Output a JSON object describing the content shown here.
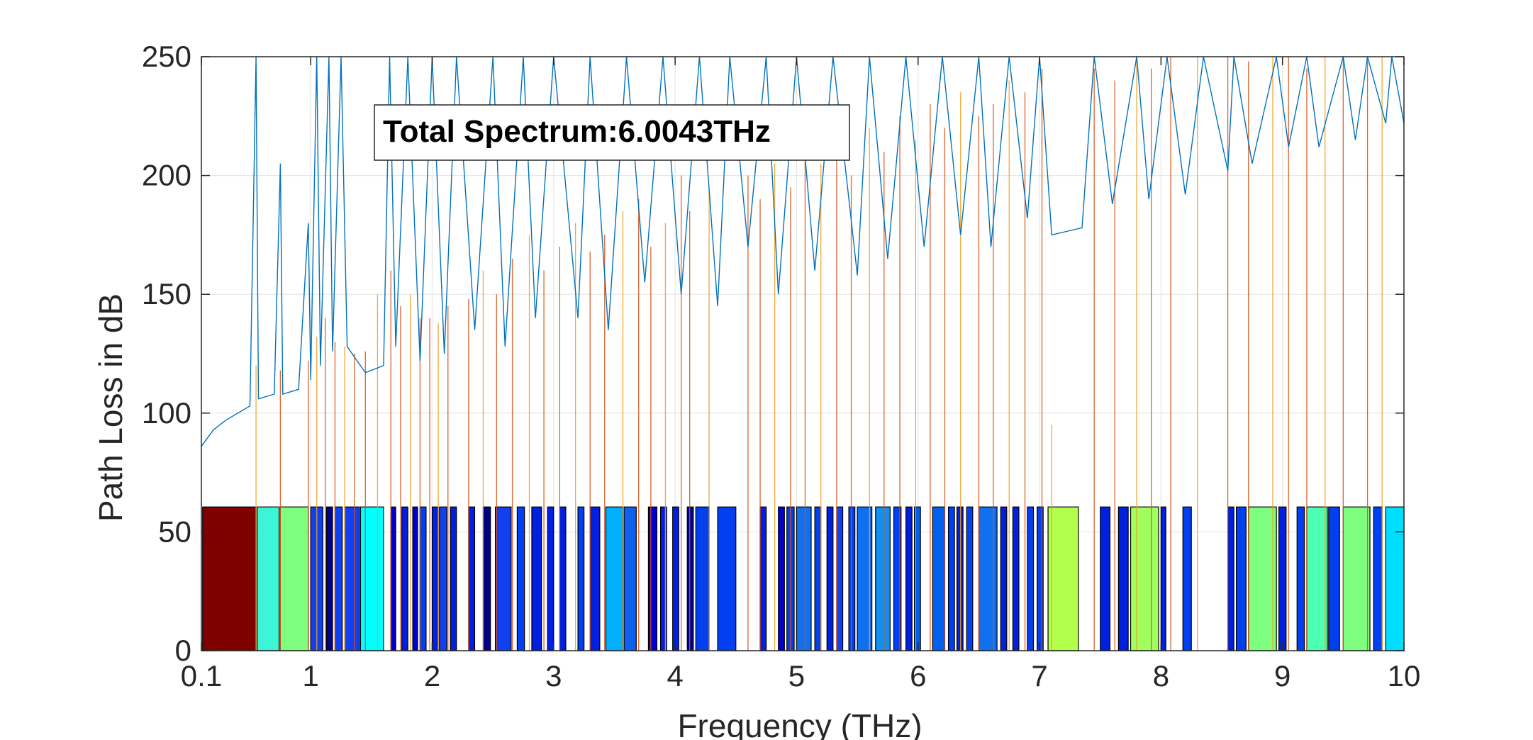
{
  "chart_data": {
    "type": "bar",
    "xlabel": "Frequency (THz)",
    "ylabel": "Path Loss in dB",
    "xlim": [
      0.1,
      10
    ],
    "ylim": [
      0,
      250
    ],
    "xticks": [
      0.1,
      1,
      2,
      3,
      4,
      5,
      6,
      7,
      8,
      9,
      10
    ],
    "xtick_labels": [
      "0.1",
      "1",
      "2",
      "3",
      "4",
      "5",
      "6",
      "7",
      "8",
      "9",
      "10"
    ],
    "yticks": [
      0,
      50,
      100,
      150,
      200,
      250
    ],
    "ytick_labels": [
      "0",
      "50",
      "100",
      "150",
      "200",
      "250"
    ],
    "grid": true,
    "annotation": "Total Spectrum:6.0043THz",
    "series": [
      {
        "type": "line",
        "color": "#0072BD",
        "points": [
          [
            0.1,
            86
          ],
          [
            0.2,
            93
          ],
          [
            0.3,
            97
          ],
          [
            0.4,
            100
          ],
          [
            0.5,
            103
          ],
          [
            0.55,
            250
          ],
          [
            0.57,
            106
          ],
          [
            0.7,
            108
          ],
          [
            0.75,
            205
          ],
          [
            0.77,
            108
          ],
          [
            0.9,
            110
          ],
          [
            0.98,
            180
          ],
          [
            1.0,
            114
          ],
          [
            1.05,
            250
          ],
          [
            1.08,
            120
          ],
          [
            1.15,
            250
          ],
          [
            1.18,
            126
          ],
          [
            1.25,
            250
          ],
          [
            1.3,
            128
          ],
          [
            1.45,
            117
          ],
          [
            1.6,
            120
          ],
          [
            1.65,
            250
          ],
          [
            1.7,
            128
          ],
          [
            1.8,
            250
          ],
          [
            1.9,
            122
          ],
          [
            2.0,
            250
          ],
          [
            2.1,
            125
          ],
          [
            2.2,
            250
          ],
          [
            2.35,
            135
          ],
          [
            2.5,
            250
          ],
          [
            2.6,
            128
          ],
          [
            2.75,
            250
          ],
          [
            2.85,
            140
          ],
          [
            3.0,
            250
          ],
          [
            3.2,
            140
          ],
          [
            3.3,
            250
          ],
          [
            3.45,
            135
          ],
          [
            3.6,
            250
          ],
          [
            3.75,
            155
          ],
          [
            3.9,
            250
          ],
          [
            4.05,
            150
          ],
          [
            4.2,
            250
          ],
          [
            4.35,
            145
          ],
          [
            4.45,
            250
          ],
          [
            4.6,
            170
          ],
          [
            4.75,
            250
          ],
          [
            4.85,
            150
          ],
          [
            5.0,
            250
          ],
          [
            5.15,
            160
          ],
          [
            5.3,
            250
          ],
          [
            5.5,
            158
          ],
          [
            5.6,
            250
          ],
          [
            5.75,
            165
          ],
          [
            5.9,
            250
          ],
          [
            6.05,
            170
          ],
          [
            6.2,
            250
          ],
          [
            6.35,
            175
          ],
          [
            6.5,
            250
          ],
          [
            6.6,
            170
          ],
          [
            6.75,
            250
          ],
          [
            6.9,
            182
          ],
          [
            7.0,
            250
          ],
          [
            7.1,
            175
          ],
          [
            7.35,
            178
          ],
          [
            7.45,
            250
          ],
          [
            7.6,
            188
          ],
          [
            7.8,
            250
          ],
          [
            7.9,
            190
          ],
          [
            8.05,
            250
          ],
          [
            8.2,
            192
          ],
          [
            8.35,
            250
          ],
          [
            8.55,
            202
          ],
          [
            8.6,
            250
          ],
          [
            8.75,
            205
          ],
          [
            8.95,
            250
          ],
          [
            9.05,
            212
          ],
          [
            9.2,
            250
          ],
          [
            9.3,
            212
          ],
          [
            9.5,
            250
          ],
          [
            9.6,
            215
          ],
          [
            9.7,
            250
          ],
          [
            9.85,
            222
          ],
          [
            9.9,
            250
          ],
          [
            10.0,
            222
          ]
        ]
      },
      {
        "type": "spikes",
        "color": "#D95319",
        "x": [
          0.55,
          0.75,
          0.98,
          1.05,
          1.12,
          1.2,
          1.28,
          1.36,
          1.45,
          1.55,
          1.66,
          1.74,
          1.82,
          1.9,
          1.98,
          2.05,
          2.13,
          2.3,
          2.42,
          2.53,
          2.66,
          2.8,
          2.92,
          3.05,
          3.18,
          3.3,
          3.42,
          3.57,
          3.7,
          3.8,
          3.92,
          4.05,
          4.12,
          4.28,
          4.6,
          4.7,
          4.82,
          4.95,
          5.07,
          5.2,
          5.33,
          5.45,
          5.6,
          5.72,
          5.85,
          5.98,
          6.1,
          6.22,
          6.35,
          6.5,
          6.62,
          6.75,
          6.88,
          7.02,
          7.1,
          7.45,
          7.62,
          7.8,
          7.92,
          8.08,
          8.3,
          8.55,
          8.72,
          8.92,
          9.05,
          9.2,
          9.35,
          9.5,
          9.7,
          9.82
        ],
        "heights": [
          120,
          118,
          122,
          132,
          140,
          130,
          128,
          125,
          126,
          150,
          160,
          145,
          150,
          140,
          140,
          138,
          145,
          148,
          160,
          150,
          165,
          175,
          160,
          170,
          180,
          168,
          175,
          185,
          190,
          170,
          180,
          200,
          185,
          195,
          200,
          190,
          205,
          195,
          210,
          205,
          215,
          200,
          220,
          210,
          225,
          215,
          230,
          220,
          235,
          225,
          230,
          240,
          235,
          245,
          95,
          245,
          240,
          250,
          245,
          250,
          250,
          250,
          248,
          250,
          250,
          245,
          250,
          250,
          250,
          250
        ]
      }
    ],
    "bars": {
      "height": 60.5,
      "outline": "#000000",
      "items": [
        {
          "x0": 0.11,
          "x1": 0.55,
          "color": "#800000"
        },
        {
          "x0": 0.56,
          "x1": 0.74,
          "color": "#3DF5D6"
        },
        {
          "x0": 0.75,
          "x1": 0.98,
          "color": "#7FFF7F"
        },
        {
          "x0": 1.0,
          "x1": 1.1,
          "color": "#0F3FEF"
        },
        {
          "x0": 1.13,
          "x1": 1.18,
          "color": "#000088"
        },
        {
          "x0": 1.2,
          "x1": 1.26,
          "color": "#0F3FEF"
        },
        {
          "x0": 1.28,
          "x1": 1.4,
          "color": "#1040F0"
        },
        {
          "x0": 1.41,
          "x1": 1.6,
          "color": "#00FFFF"
        },
        {
          "x0": 1.66,
          "x1": 1.7,
          "color": "#0000CC"
        },
        {
          "x0": 1.75,
          "x1": 1.8,
          "color": "#0020E0"
        },
        {
          "x0": 1.84,
          "x1": 1.88,
          "color": "#0000CC"
        },
        {
          "x0": 1.9,
          "x1": 1.95,
          "color": "#0040F0"
        },
        {
          "x0": 2.0,
          "x1": 2.05,
          "color": "#0020E0"
        },
        {
          "x0": 2.06,
          "x1": 2.12,
          "color": "#1040F0"
        },
        {
          "x0": 2.15,
          "x1": 2.2,
          "color": "#0020E0"
        },
        {
          "x0": 2.3,
          "x1": 2.35,
          "color": "#0020E0"
        },
        {
          "x0": 2.42,
          "x1": 2.48,
          "color": "#000088"
        },
        {
          "x0": 2.52,
          "x1": 2.65,
          "color": "#1040F0"
        },
        {
          "x0": 2.7,
          "x1": 2.76,
          "color": "#0040F0"
        },
        {
          "x0": 2.82,
          "x1": 2.9,
          "color": "#0020E0"
        },
        {
          "x0": 2.95,
          "x1": 3.0,
          "color": "#0020E0"
        },
        {
          "x0": 3.05,
          "x1": 3.1,
          "color": "#0020E0"
        },
        {
          "x0": 3.2,
          "x1": 3.25,
          "color": "#0040F0"
        },
        {
          "x0": 3.3,
          "x1": 3.38,
          "color": "#0020E0"
        },
        {
          "x0": 3.43,
          "x1": 3.57,
          "color": "#00AFFF"
        },
        {
          "x0": 3.58,
          "x1": 3.68,
          "color": "#1060F0"
        },
        {
          "x0": 3.78,
          "x1": 3.85,
          "color": "#0000CC"
        },
        {
          "x0": 3.88,
          "x1": 3.93,
          "color": "#0020E0"
        },
        {
          "x0": 3.98,
          "x1": 4.03,
          "color": "#0020E0"
        },
        {
          "x0": 4.1,
          "x1": 4.15,
          "color": "#000088"
        },
        {
          "x0": 4.17,
          "x1": 4.28,
          "color": "#0040F0"
        },
        {
          "x0": 4.35,
          "x1": 4.5,
          "color": "#0040F0"
        },
        {
          "x0": 4.7,
          "x1": 4.75,
          "color": "#0020E0"
        },
        {
          "x0": 4.85,
          "x1": 4.9,
          "color": "#0000CC"
        },
        {
          "x0": 4.92,
          "x1": 4.98,
          "color": "#0040F0"
        },
        {
          "x0": 5.0,
          "x1": 5.12,
          "color": "#1070F0"
        },
        {
          "x0": 5.15,
          "x1": 5.2,
          "color": "#0040F0"
        },
        {
          "x0": 5.25,
          "x1": 5.3,
          "color": "#0020E0"
        },
        {
          "x0": 5.33,
          "x1": 5.38,
          "color": "#1040F0"
        },
        {
          "x0": 5.43,
          "x1": 5.48,
          "color": "#0040F0"
        },
        {
          "x0": 5.5,
          "x1": 5.62,
          "color": "#1070F0"
        },
        {
          "x0": 5.65,
          "x1": 5.77,
          "color": "#1090F0"
        },
        {
          "x0": 5.8,
          "x1": 5.86,
          "color": "#0040F0"
        },
        {
          "x0": 5.9,
          "x1": 5.95,
          "color": "#0020E0"
        },
        {
          "x0": 5.97,
          "x1": 6.02,
          "color": "#0060F0"
        },
        {
          "x0": 6.12,
          "x1": 6.22,
          "color": "#0060F0"
        },
        {
          "x0": 6.25,
          "x1": 6.3,
          "color": "#0040F0"
        },
        {
          "x0": 6.32,
          "x1": 6.37,
          "color": "#0020E0"
        },
        {
          "x0": 6.4,
          "x1": 6.45,
          "color": "#0040F0"
        },
        {
          "x0": 6.5,
          "x1": 6.65,
          "color": "#1070F0"
        },
        {
          "x0": 6.68,
          "x1": 6.73,
          "color": "#0020E0"
        },
        {
          "x0": 6.78,
          "x1": 6.83,
          "color": "#0020E0"
        },
        {
          "x0": 6.9,
          "x1": 6.95,
          "color": "#0040F0"
        },
        {
          "x0": 6.98,
          "x1": 7.03,
          "color": "#0040F0"
        },
        {
          "x0": 7.07,
          "x1": 7.32,
          "color": "#B2FF4C"
        },
        {
          "x0": 7.5,
          "x1": 7.58,
          "color": "#0020E0"
        },
        {
          "x0": 7.65,
          "x1": 7.73,
          "color": "#0020E0"
        },
        {
          "x0": 7.75,
          "x1": 7.98,
          "color": "#A0FF5F"
        },
        {
          "x0": 8.0,
          "x1": 8.04,
          "color": "#0020E0"
        },
        {
          "x0": 8.18,
          "x1": 8.25,
          "color": "#0040F0"
        },
        {
          "x0": 8.55,
          "x1": 8.6,
          "color": "#0020E0"
        },
        {
          "x0": 8.62,
          "x1": 8.7,
          "color": "#0040F0"
        },
        {
          "x0": 8.72,
          "x1": 8.95,
          "color": "#7FFF7F"
        },
        {
          "x0": 8.97,
          "x1": 9.03,
          "color": "#0020E0"
        },
        {
          "x0": 9.12,
          "x1": 9.18,
          "color": "#0040F0"
        },
        {
          "x0": 9.2,
          "x1": 9.37,
          "color": "#4CFFB2"
        },
        {
          "x0": 9.38,
          "x1": 9.47,
          "color": "#0040F0"
        },
        {
          "x0": 9.5,
          "x1": 9.72,
          "color": "#7FFF7F"
        },
        {
          "x0": 9.75,
          "x1": 9.82,
          "color": "#0040F0"
        },
        {
          "x0": 9.85,
          "x1": 10.0,
          "color": "#00DFFF"
        }
      ]
    }
  }
}
